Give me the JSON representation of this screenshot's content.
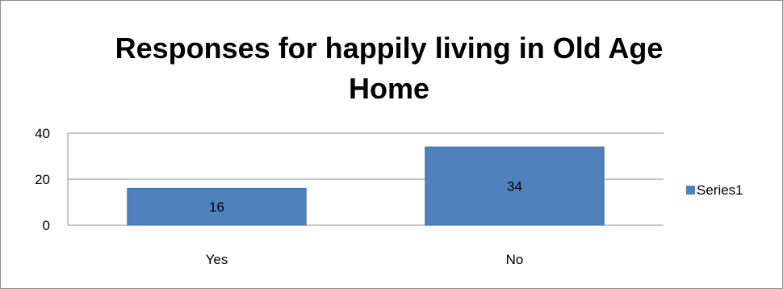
{
  "chart_data": {
    "type": "bar",
    "title": "Responses for  happily living in Old Age Home",
    "title_lines": [
      "Responses for  happily living in Old Age",
      "Home"
    ],
    "categories": [
      "Yes",
      "No"
    ],
    "series": [
      {
        "name": "Series1",
        "values": [
          16,
          34
        ],
        "color": "#4f81bd"
      }
    ],
    "ylim": [
      0,
      40
    ],
    "yticks": [
      0,
      20,
      40
    ],
    "ytick_labels": [
      "0",
      "20",
      "40"
    ],
    "data_labels": [
      "16",
      "34"
    ],
    "xlabel": "",
    "ylabel": "",
    "grid": true,
    "legend_position": "right"
  },
  "colors": {
    "bar": "#4f81bd",
    "bar_border": "#3f6ea5",
    "gridline": "#8c8c8c",
    "frame": "#8c8c8c"
  }
}
